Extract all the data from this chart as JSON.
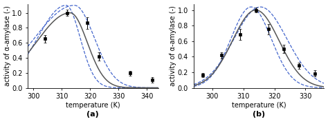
{
  "panel_a": {
    "xlim": [
      298,
      344
    ],
    "ylim": [
      0.0,
      1.12
    ],
    "xticks": [
      300,
      310,
      320,
      330,
      340
    ],
    "yticks": [
      0.0,
      0.2,
      0.4,
      0.6,
      0.8,
      1.0
    ],
    "xlabel": "temperature (K)",
    "ylabel": "activity of α-amylase (-)",
    "label": "(a)",
    "data_x": [
      304,
      312,
      319,
      323,
      334,
      342
    ],
    "data_y": [
      0.655,
      1.0,
      0.865,
      0.415,
      0.195,
      0.105
    ],
    "data_yerr": [
      0.05,
      0.04,
      0.08,
      0.055,
      0.03,
      0.04
    ],
    "main_peak": 313.0,
    "main_wl": 12.0,
    "main_wr": 6.0,
    "dash1_peak": 311.5,
    "dash1_wl": 10.0,
    "dash1_wr": 5.0,
    "dash1_scale": 1.1,
    "dash2_peak": 314.5,
    "dash2_wl": 14.0,
    "dash2_wr": 7.0,
    "dash2_scale": 1.1
  },
  "panel_b": {
    "xlim": [
      294,
      336
    ],
    "ylim": [
      0.0,
      1.08
    ],
    "xticks": [
      300,
      310,
      320,
      330
    ],
    "yticks": [
      0.0,
      0.2,
      0.4,
      0.6,
      0.8,
      1.0
    ],
    "xlabel": "temperature (K)",
    "ylabel": "activity of α-amylase (-)",
    "label": "(b)",
    "data_x": [
      297,
      303,
      309,
      314,
      318,
      323,
      328,
      333
    ],
    "data_y": [
      0.165,
      0.42,
      0.69,
      1.0,
      0.755,
      0.5,
      0.285,
      0.185
    ],
    "data_yerr": [
      0.025,
      0.04,
      0.07,
      0.03,
      0.065,
      0.05,
      0.04,
      0.04
    ],
    "main_peak": 314.0,
    "main_wl": 7.5,
    "main_wr": 7.5,
    "dash1_peak": 312.5,
    "dash1_wl": 6.5,
    "dash1_wr": 6.5,
    "dash1_scale": 1.04,
    "dash2_peak": 315.5,
    "dash2_wl": 8.5,
    "dash2_wr": 8.5,
    "dash2_scale": 1.04
  },
  "line_color": "#555555",
  "dashed_color": "#4466cc",
  "marker_color": "black",
  "fontsize": 7.0,
  "label_fontsize": 8.0
}
